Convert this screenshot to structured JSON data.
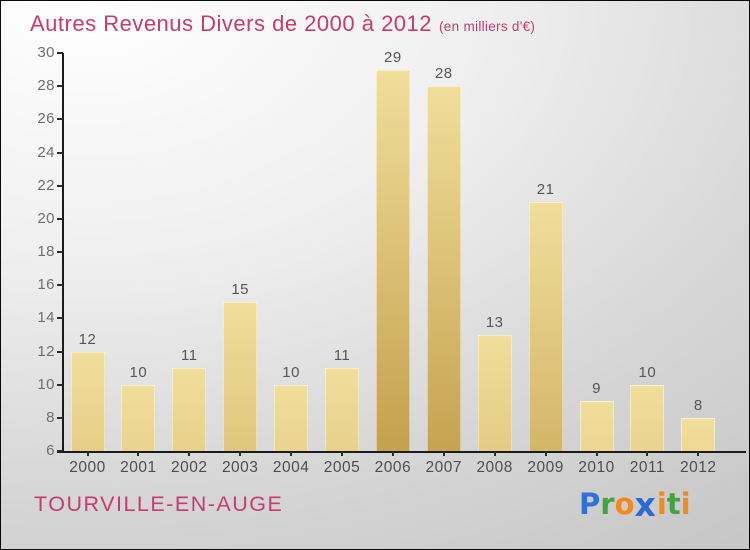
{
  "title": {
    "text": "Autres Revenus Divers de 2000 à 2012",
    "subtitle": "(en milliers d'€)",
    "color": "#C63C6E"
  },
  "chart_data": {
    "type": "bar",
    "categories": [
      "2000",
      "2001",
      "2002",
      "2003",
      "2004",
      "2005",
      "2006",
      "2007",
      "2008",
      "2009",
      "2010",
      "2011",
      "2012"
    ],
    "values": [
      12,
      10,
      11,
      15,
      10,
      11,
      29,
      28,
      13,
      21,
      9,
      10,
      8
    ],
    "title": "Autres Revenus Divers de 2000 à 2012",
    "subtitle": "(en milliers d'€)",
    "xlabel": "",
    "ylabel": "",
    "ylim": [
      6,
      30
    ],
    "ytick_step": 2,
    "grid": false,
    "legend": null,
    "value_labels_shown": true,
    "bar_color_top": "#F1DE9B",
    "bar_color_bottom": "#C29E49",
    "axis_color": "#1b1b1b",
    "tick_label_color": "#6f6f6f"
  },
  "footer": {
    "commune": "TOURVILLE-EN-AUGE",
    "color": "#C63C6E"
  },
  "logo": {
    "text": "Proxiti",
    "letters": [
      {
        "ch": "P",
        "color": "#2E71D8"
      },
      {
        "ch": "r",
        "color": "#43A343"
      },
      {
        "ch": "o",
        "color": "#F28A1E"
      },
      {
        "ch": "x",
        "color": "#2B6BD5",
        "bold_x": true
      },
      {
        "ch": "i",
        "color": "#F28A1E"
      },
      {
        "ch": "t",
        "color": "#43A343"
      },
      {
        "ch": "i",
        "color": "#F28A1E"
      }
    ]
  }
}
